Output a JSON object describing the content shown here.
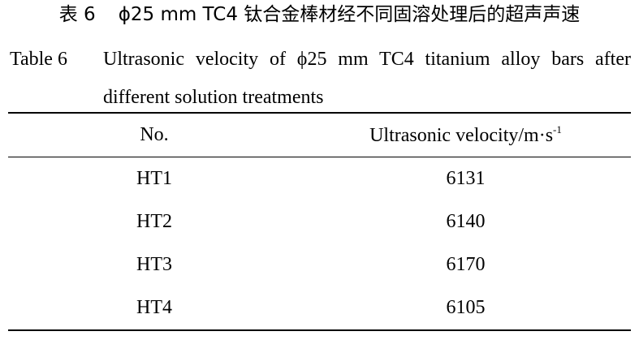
{
  "caption": {
    "cn_label": "表 6",
    "cn_text": "ϕ25 mm TC4 钛合金棒材经不同固溶处理后的超声声速",
    "en_label": "Table 6",
    "en_text": "Ultrasonic velocity of ϕ25 mm TC4 titanium alloy bars after different solution treatments"
  },
  "table": {
    "header": [
      "No.",
      {
        "text": "Ultrasonic velocity/m·s",
        "sup": "-1"
      }
    ],
    "rows": [
      [
        "HT1",
        6131
      ],
      [
        "HT2",
        6140
      ],
      [
        "HT3",
        6170
      ],
      [
        "HT4",
        6105
      ]
    ]
  }
}
